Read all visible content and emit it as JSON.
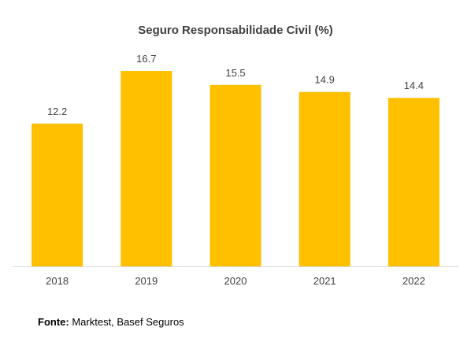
{
  "chart_data": {
    "type": "bar",
    "title": "Seguro Responsabilidade Civil (%)",
    "categories": [
      "2018",
      "2019",
      "2020",
      "2021",
      "2022"
    ],
    "values": [
      12.2,
      16.7,
      15.5,
      14.9,
      14.4
    ],
    "value_labels": [
      "12.2",
      "16.7",
      "15.5",
      "14.9",
      "14.4"
    ],
    "xlabel": "",
    "ylabel": "",
    "ylim": [
      0,
      16.7
    ],
    "grid": false,
    "legend": "none",
    "bar_color": "#FFC000",
    "axis_color": "#D9D9D9"
  },
  "source": {
    "label": "Fonte:",
    "text": "Marktest, Basef Seguros"
  }
}
